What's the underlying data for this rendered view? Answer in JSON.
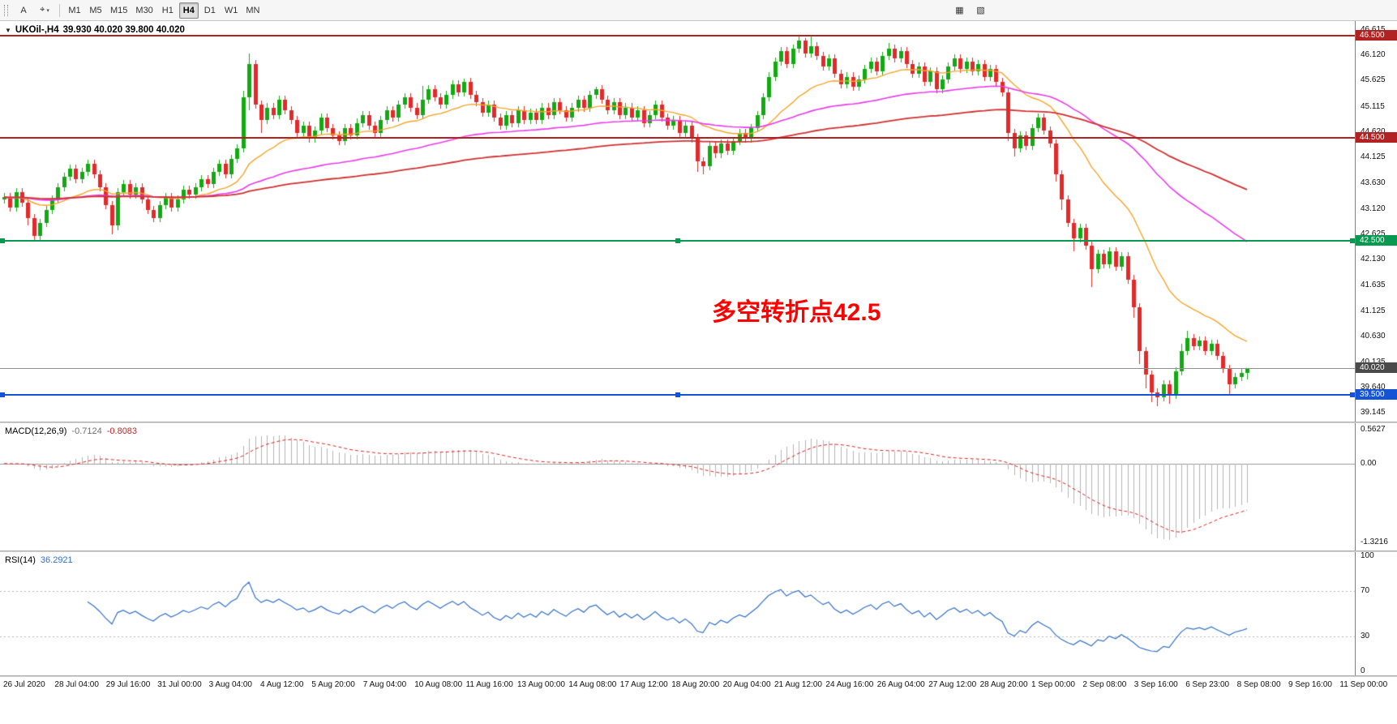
{
  "toolbar": {
    "text_tool": "A",
    "cursor_tool": "⌖",
    "cursor_caret": "▾",
    "timeframes": [
      "M1",
      "M5",
      "M15",
      "M30",
      "H1",
      "H4",
      "D1",
      "W1",
      "MN"
    ],
    "active_timeframe": "H4",
    "extra_buttons": [
      "▦",
      "▧"
    ]
  },
  "main_chart": {
    "title_caret": "▼",
    "symbol": "UKOil-,H4",
    "ohlc": "39.930 40.020 39.800 40.020",
    "annotation": "多空转折点42.5",
    "annotation_color": "#ff0000",
    "axis_labels": [
      "46.615",
      "46.120",
      "45.625",
      "45.115",
      "44.620",
      "44.125",
      "43.630",
      "43.120",
      "42.625",
      "42.130",
      "41.635",
      "41.125",
      "40.630",
      "40.135",
      "39.640",
      "39.145"
    ],
    "badges": [
      {
        "text": "46.500",
        "price": 46.5,
        "color": "#b22222"
      },
      {
        "text": "44.500",
        "price": 44.5,
        "color": "#b22222"
      },
      {
        "text": "42.500",
        "price": 42.5,
        "color": "#089950"
      },
      {
        "text": "40.020",
        "price": 40.02,
        "color": "#4a4a4a"
      },
      {
        "text": "39.500",
        "price": 39.5,
        "color": "#1553d6"
      }
    ],
    "hlines": [
      {
        "name": "resistance-line-46500",
        "price": 46.5,
        "color": "#b22222",
        "width": 2,
        "handles": false
      },
      {
        "name": "resistance-line-44500",
        "price": 44.5,
        "color": "#b22222",
        "width": 2,
        "handles": false
      },
      {
        "name": "pivot-line-42500",
        "price": 42.5,
        "color": "#089950",
        "width": 2,
        "handles": true
      },
      {
        "name": "support-line-39500",
        "price": 39.5,
        "color": "#1553d6",
        "width": 2,
        "handles": true
      }
    ],
    "current_price_line": {
      "price": 40.02,
      "color": "#909090"
    }
  },
  "macd_panel": {
    "name": "MACD(12,26,9)",
    "value_main": "-0.7124",
    "value_signal": "-0.8083",
    "axis_labels": [
      {
        "text": "0.5627",
        "v": 0.5627
      },
      {
        "text": "0.00",
        "v": 0
      },
      {
        "text": "-1.3216",
        "v": -1.3216
      }
    ]
  },
  "rsi_panel": {
    "name": "RSI(14)",
    "value": "36.2921",
    "levels": [
      70,
      30
    ],
    "axis_labels": [
      {
        "text": "100",
        "v": 100
      },
      {
        "text": "70",
        "v": 70
      },
      {
        "text": "30",
        "v": 30
      },
      {
        "text": "0",
        "v": 0
      }
    ]
  },
  "time_axis": [
    "26 Jul 2020",
    "28 Jul 04:00",
    "29 Jul 16:00",
    "31 Jul 00:00",
    "3 Aug 04:00",
    "4 Aug 12:00",
    "5 Aug 20:00",
    "7 Aug 04:00",
    "10 Aug 08:00",
    "11 Aug 16:00",
    "13 Aug 00:00",
    "14 Aug 08:00",
    "17 Aug 12:00",
    "18 Aug 20:00",
    "20 Aug 04:00",
    "21 Aug 12:00",
    "24 Aug 16:00",
    "26 Aug 04:00",
    "27 Aug 12:00",
    "28 Aug 20:00",
    "1 Sep 00:00",
    "2 Sep 08:00",
    "3 Sep 16:00",
    "6 Sep 23:00",
    "8 Sep 08:00",
    "9 Sep 16:00",
    "11 Sep 00:00"
  ],
  "chart_data": {
    "type": "candlestick",
    "symbol": "UKOil-",
    "timeframe": "H4",
    "ylim": [
      39.04,
      46.72
    ],
    "up_color": "#13a913",
    "down_color": "#e22a2a",
    "first_open": 43.3,
    "wick_pad": 0.08,
    "closes": [
      43.35,
      43.15,
      43.45,
      43.25,
      42.95,
      42.6,
      42.85,
      43.1,
      43.3,
      43.55,
      43.75,
      43.9,
      43.7,
      43.85,
      44.0,
      43.8,
      43.55,
      43.2,
      42.8,
      43.45,
      43.6,
      43.4,
      43.55,
      43.3,
      43.1,
      42.95,
      43.2,
      43.35,
      43.15,
      43.3,
      43.5,
      43.4,
      43.55,
      43.7,
      43.6,
      43.85,
      44.0,
      43.8,
      44.1,
      44.3,
      45.3,
      45.95,
      45.15,
      44.85,
      45.1,
      44.95,
      45.25,
      45.05,
      44.85,
      44.6,
      44.75,
      44.5,
      44.65,
      44.9,
      44.7,
      44.55,
      44.45,
      44.7,
      44.55,
      44.8,
      44.95,
      44.75,
      44.6,
      44.85,
      45.05,
      44.9,
      45.15,
      45.3,
      45.1,
      44.95,
      45.25,
      45.45,
      45.3,
      45.15,
      45.35,
      45.55,
      45.4,
      45.6,
      45.35,
      45.2,
      45.0,
      45.15,
      44.9,
      44.75,
      44.95,
      44.8,
      45.05,
      44.85,
      45.0,
      44.85,
      45.1,
      44.95,
      45.2,
      45.05,
      44.9,
      45.1,
      45.25,
      45.1,
      45.35,
      45.45,
      45.25,
      45.05,
      45.2,
      44.95,
      45.1,
      44.9,
      45.05,
      44.8,
      44.95,
      45.15,
      44.9,
      44.75,
      44.85,
      44.6,
      44.75,
      44.5,
      44.05,
      43.95,
      44.35,
      44.2,
      44.4,
      44.25,
      44.45,
      44.6,
      44.5,
      44.7,
      44.95,
      45.3,
      45.7,
      46.0,
      46.2,
      45.95,
      46.25,
      46.4,
      46.15,
      46.3,
      46.1,
      45.9,
      46.05,
      45.75,
      45.55,
      45.7,
      45.5,
      45.65,
      45.85,
      46.0,
      45.8,
      46.1,
      46.25,
      46.05,
      46.2,
      45.95,
      45.75,
      45.9,
      45.6,
      45.8,
      45.45,
      45.65,
      45.9,
      46.05,
      45.85,
      46.0,
      45.8,
      45.95,
      45.7,
      45.85,
      45.6,
      45.4,
      44.6,
      44.3,
      44.55,
      44.35,
      44.7,
      44.9,
      44.65,
      44.4,
      43.8,
      43.3,
      42.85,
      42.55,
      42.75,
      42.4,
      41.95,
      42.25,
      42.05,
      42.3,
      42.0,
      42.2,
      41.75,
      41.2,
      40.35,
      39.9,
      39.55,
      39.45,
      39.7,
      39.5,
      39.95,
      40.35,
      40.6,
      40.45,
      40.55,
      40.35,
      40.5,
      40.25,
      40.0,
      39.7,
      39.85,
      39.93,
      40.02
    ],
    "overrides": {
      "4": {
        "l": 42.8
      },
      "5": {
        "l": 42.52
      },
      "18": {
        "l": 42.62
      },
      "19": {
        "l": 42.7
      },
      "40": {
        "h": 45.42,
        "l": 44.22
      },
      "41": {
        "h": 46.15,
        "l": 45.05
      },
      "42": {
        "h": 46.02
      },
      "43": {
        "l": 44.6
      },
      "70": {
        "h": 45.52
      },
      "77": {
        "h": 45.66
      },
      "99": {
        "h": 45.5
      },
      "116": {
        "l": 43.85
      },
      "117": {
        "l": 43.8
      },
      "133": {
        "h": 46.52
      },
      "134": {
        "h": 46.45
      },
      "135": {
        "h": 46.48
      },
      "148": {
        "h": 46.35
      },
      "168": {
        "l": 44.45
      },
      "169": {
        "l": 44.15
      },
      "176": {
        "l": 43.65
      },
      "177": {
        "l": 43.1
      },
      "179": {
        "l": 42.3
      },
      "182": {
        "l": 41.6
      },
      "189": {
        "l": 41.0
      },
      "190": {
        "l": 40.1
      },
      "191": {
        "l": 39.62
      },
      "192": {
        "l": 39.35
      },
      "193": {
        "l": 39.28
      },
      "195": {
        "l": 39.32
      },
      "197": {
        "h": 40.5
      },
      "198": {
        "h": 40.75
      },
      "205": {
        "l": 39.52
      },
      "208": {
        "h": 40.02,
        "l": 39.8
      }
    },
    "ma": [
      {
        "type": "ema",
        "period": 21,
        "color": "#f4a62a",
        "width": 1.4
      },
      {
        "type": "ema",
        "period": 68,
        "color": "#e93ce9",
        "width": 1.6
      },
      {
        "type": "ema",
        "period": 144,
        "color": "#d03030",
        "width": 1.8
      }
    ],
    "macd": {
      "fast": 12,
      "slow": 26,
      "signal_period": 9,
      "range": [
        -1.4,
        0.62
      ],
      "hist_color": "#b4b4b4",
      "signal_color": "#dd2222"
    },
    "rsi": {
      "period": 14,
      "range": [
        0,
        100
      ],
      "color": "#3470c8"
    }
  }
}
